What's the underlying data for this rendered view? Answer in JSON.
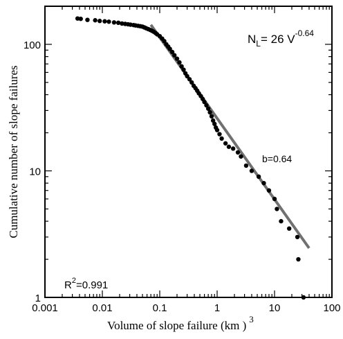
{
  "chart_data": {
    "type": "scatter",
    "xlabel": "Volume of slope failure (km )",
    "xlabel_exponent": "3",
    "ylabel": "Cumulative number of slope failures",
    "xscale": "log",
    "yscale": "log",
    "xlim": [
      0.001,
      100
    ],
    "ylim": [
      1,
      200
    ],
    "xticks": [
      {
        "value": 0.001,
        "label": "0.001"
      },
      {
        "value": 0.01,
        "label": "0.01"
      },
      {
        "value": 0.1,
        "label": "0.1"
      },
      {
        "value": 1,
        "label": "1"
      },
      {
        "value": 10,
        "label": "10"
      },
      {
        "value": 100,
        "label": "100"
      }
    ],
    "yticks": [
      {
        "value": 1,
        "label": "1"
      },
      {
        "value": 10,
        "label": "10"
      },
      {
        "value": 100,
        "label": "100"
      }
    ],
    "points": [
      [
        0.0037,
        160
      ],
      [
        0.0042,
        159
      ],
      [
        0.0055,
        156
      ],
      [
        0.0075,
        155
      ],
      [
        0.009,
        153
      ],
      [
        0.011,
        152
      ],
      [
        0.013,
        151
      ],
      [
        0.016,
        149
      ],
      [
        0.019,
        148
      ],
      [
        0.022,
        146
      ],
      [
        0.025,
        145
      ],
      [
        0.028,
        144
      ],
      [
        0.031,
        143
      ],
      [
        0.035,
        142
      ],
      [
        0.038,
        141
      ],
      [
        0.042,
        140
      ],
      [
        0.046,
        139
      ],
      [
        0.05,
        138
      ],
      [
        0.054,
        136
      ],
      [
        0.058,
        134
      ],
      [
        0.063,
        132
      ],
      [
        0.068,
        130
      ],
      [
        0.073,
        128
      ],
      [
        0.078,
        126
      ],
      [
        0.084,
        123
      ],
      [
        0.09,
        120
      ],
      [
        0.1,
        116
      ],
      [
        0.11,
        111
      ],
      [
        0.12,
        106
      ],
      [
        0.13,
        100
      ],
      [
        0.14,
        96
      ],
      [
        0.15,
        92
      ],
      [
        0.165,
        87
      ],
      [
        0.18,
        82
      ],
      [
        0.2,
        77
      ],
      [
        0.22,
        72
      ],
      [
        0.24,
        67
      ],
      [
        0.26,
        63
      ],
      [
        0.28,
        59
      ],
      [
        0.3,
        56
      ],
      [
        0.33,
        53
      ],
      [
        0.36,
        50
      ],
      [
        0.39,
        47
      ],
      [
        0.42,
        45
      ],
      [
        0.45,
        43
      ],
      [
        0.48,
        41
      ],
      [
        0.52,
        39
      ],
      [
        0.56,
        37
      ],
      [
        0.6,
        35
      ],
      [
        0.65,
        33
      ],
      [
        0.7,
        31
      ],
      [
        0.75,
        29
      ],
      [
        0.8,
        27
      ],
      [
        0.85,
        25
      ],
      [
        0.9,
        23.5
      ],
      [
        0.95,
        22
      ],
      [
        1.0,
        21
      ],
      [
        1.1,
        19.5
      ],
      [
        1.2,
        18
      ],
      [
        1.4,
        16.5
      ],
      [
        1.6,
        15.5
      ],
      [
        1.9,
        15
      ],
      [
        2.3,
        14
      ],
      [
        2.6,
        13
      ],
      [
        3.2,
        11
      ],
      [
        4.0,
        10
      ],
      [
        5.3,
        9
      ],
      [
        6.5,
        8
      ],
      [
        8.0,
        7
      ],
      [
        10,
        6
      ],
      [
        11,
        5
      ],
      [
        13,
        4
      ],
      [
        18,
        3.5
      ],
      [
        25,
        3
      ],
      [
        26,
        2
      ],
      [
        32,
        1
      ]
    ],
    "fit_line": {
      "label": "b=0.64",
      "coefficient": 26,
      "exponent": -0.64,
      "x_range": [
        0.07,
        40
      ]
    },
    "equation": {
      "lhs": "N",
      "lhs_sub": "L",
      "rhs": "= 26 V",
      "rhs_sup": "-0.64"
    },
    "r_squared": {
      "label": "R",
      "sup": "2",
      "value": "=0.991"
    },
    "grid": false,
    "legend": "none",
    "colors": {
      "points": "#000000",
      "fit_line": "#707070",
      "axes": "#000000"
    }
  }
}
